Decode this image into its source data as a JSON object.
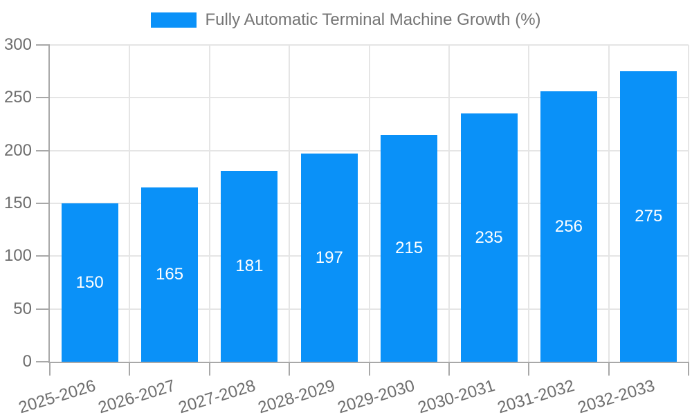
{
  "legend": {
    "label": "Fully Automatic Terminal Machine Growth (%)"
  },
  "colors": {
    "bar": "#0a91f8",
    "axis_line": "#a8a8a8",
    "gridline": "#e5e5e5",
    "tick_label_text": "#6e6e6e",
    "legend_text": "#757575",
    "bar_value_text": "#ffffff",
    "background": "#ffffff"
  },
  "chart_data": {
    "type": "bar",
    "title": "",
    "xlabel": "",
    "ylabel": "",
    "series_name": "Fully Automatic Terminal Machine Growth (%)",
    "categories": [
      "2025-2026",
      "2026-2027",
      "2027-2028",
      "2028-2029",
      "2029-2030",
      "2030-2031",
      "2031-2032",
      "2032-2033"
    ],
    "values": [
      150,
      165,
      181,
      197,
      215,
      235,
      256,
      275
    ],
    "value_labels_shown": true,
    "ylim": [
      0,
      300
    ],
    "yticks": [
      0,
      50,
      100,
      150,
      200,
      250,
      300
    ],
    "ytick_labels": [
      "0",
      "50",
      "100",
      "150",
      "200",
      "250",
      "300"
    ],
    "grid": true,
    "legend_position": "top"
  }
}
